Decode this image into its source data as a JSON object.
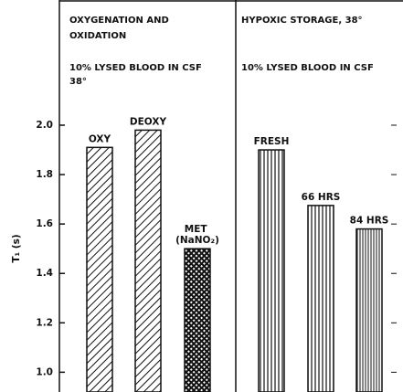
{
  "chart_data": [
    {
      "type": "bar",
      "title_lines": [
        "OXYGENATION AND",
        "OXIDATION"
      ],
      "subtitle_lines": [
        "10% LYSED BLOOD IN CSF",
        "38°"
      ],
      "y_label": "T₁ (s)",
      "categories": [
        "OXY",
        "DEOXY",
        "MET (NaNO₂)"
      ],
      "values": [
        1.91,
        1.98,
        1.5
      ],
      "patterns": [
        "diag",
        "diag",
        "cross"
      ],
      "ylim": [
        0.92,
        2.0
      ],
      "yticks": [
        {
          "value": 1,
          "label": "1.0"
        },
        {
          "value": 1.2,
          "label": "1.2"
        },
        {
          "value": 1.4,
          "label": "1.4"
        },
        {
          "value": 1.6,
          "label": "1.6"
        },
        {
          "value": 1.8,
          "label": "1.8"
        },
        {
          "value": 2,
          "label": "2.0"
        }
      ]
    },
    {
      "type": "bar",
      "title_lines": [
        "HYPOXIC STORAGE, 38°"
      ],
      "subtitle_lines": [
        "10% LYSED BLOOD IN CSF"
      ],
      "categories": [
        "FRESH",
        "66 HRS",
        "84 HRS"
      ],
      "values": [
        1.9,
        1.675,
        1.58
      ],
      "patterns": [
        "vert",
        "vert",
        "vert2"
      ],
      "ylim": [
        0.92,
        2.0
      ]
    }
  ]
}
